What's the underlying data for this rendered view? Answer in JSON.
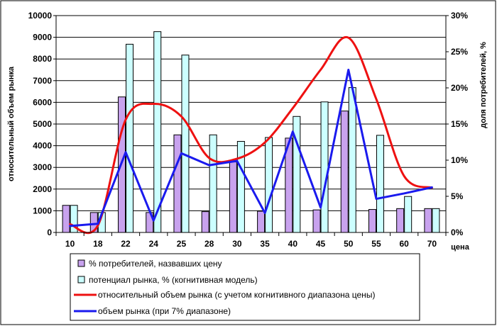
{
  "chart_data": {
    "type": "bar",
    "categories": [
      "10",
      "18",
      "22",
      "24",
      "25",
      "28",
      "30",
      "35",
      "40",
      "45",
      "50",
      "55",
      "60",
      "70"
    ],
    "xlabel": "цена",
    "ylabel_left": "относительный объем рынка",
    "ylabel_right": "доля потребителей, %",
    "ylim_left": [
      0,
      10000
    ],
    "ylim_right": [
      0,
      30
    ],
    "yticks_left": [
      "0",
      "1000",
      "2000",
      "3000",
      "4000",
      "5000",
      "6000",
      "7000",
      "8000",
      "9000",
      "10000"
    ],
    "yticks_right": [
      "0%",
      "5%",
      "10%",
      "15%",
      "20%",
      "25%",
      "30%"
    ],
    "grid": true,
    "legend_position": "bottom",
    "series": [
      {
        "name": "% потребителей, назвавших цену",
        "kind": "bar",
        "axis": "left",
        "color": "#c8a2ee",
        "values": [
          1250,
          920,
          6250,
          920,
          4500,
          960,
          3250,
          980,
          4350,
          1040,
          5600,
          1060,
          1100,
          1100
        ]
      },
      {
        "name": "потенциал рынка, % (когнитивная модель)",
        "kind": "bar",
        "axis": "left",
        "color": "#ccffff",
        "values": [
          1250,
          920,
          8680,
          9260,
          8180,
          4500,
          4200,
          4380,
          5350,
          6020,
          6680,
          4480,
          1660,
          1100
        ]
      },
      {
        "name": "относительный объем рынка (с учетом когнитивного диапазона цены)",
        "kind": "line",
        "axis": "left",
        "smooth": true,
        "color": "#ee1111",
        "values": [
          380,
          320,
          5200,
          5930,
          5350,
          3430,
          3400,
          4150,
          5730,
          7500,
          8980,
          6150,
          2600,
          2060
        ]
      },
      {
        "name": "объем рынка (при 7% диапазоне)",
        "kind": "line",
        "axis": "left",
        "smooth": false,
        "color": "#1a1aee",
        "values": [
          300,
          400,
          3700,
          550,
          3650,
          3100,
          3300,
          900,
          4650,
          1150,
          7500,
          1550,
          1800,
          2080
        ]
      }
    ]
  }
}
